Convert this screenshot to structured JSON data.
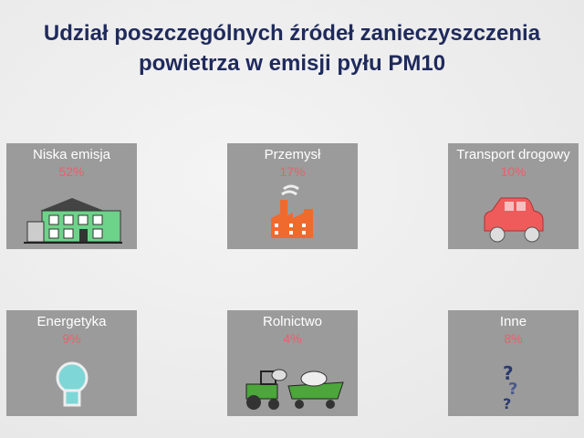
{
  "title": "Udział poszczególnych źródeł zanieczyszczenia powietrza w emisji pyłu PM10",
  "colors": {
    "title": "#1f2a5c",
    "percent": "#e8606a",
    "card": "#9b9b9b"
  },
  "items": [
    {
      "label": "Niska emisja",
      "value": "52%",
      "icon": "building-icon"
    },
    {
      "label": "Przemysł",
      "value": "17%",
      "icon": "factory-icon"
    },
    {
      "label": "Transport drogowy",
      "value": "10%",
      "icon": "car-icon"
    },
    {
      "label": "Energetyka",
      "value": "9%",
      "icon": "lightbulb-icon"
    },
    {
      "label": "Rolnictwo",
      "value": "4%",
      "icon": "tractor-icon"
    },
    {
      "label": "Inne",
      "value": "8%",
      "icon": "question-marks-icon"
    }
  ]
}
